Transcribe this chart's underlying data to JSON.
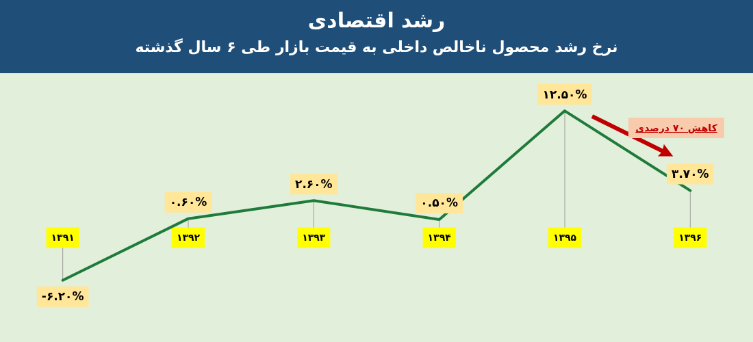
{
  "chart_data": {
    "type": "line",
    "title": "رشد اقتصادی",
    "subtitle": "نرخ رشد محصول ناخالص داخلی به قیمت بازار طی ۶ سال گذشته",
    "categories": [
      "۱۳۹۱",
      "۱۳۹۲",
      "۱۳۹۳",
      "۱۳۹۴",
      "۱۳۹۵",
      "۱۳۹۶"
    ],
    "series": [
      {
        "color": "#1e7b3a",
        "values": [
          -6.2,
          0.6,
          2.6,
          0.5,
          12.5,
          3.7
        ],
        "value_labels": [
          "-۶.۲۰%",
          "۰.۶۰%",
          "۲.۶۰%",
          "۰.۵۰%",
          "۱۲.۵۰%",
          "۳.۷۰%"
        ]
      }
    ],
    "annotations": [
      "کاهش ۷۰ درصدی"
    ],
    "grid": "x",
    "legend": false,
    "marker": "none",
    "line_style": "solid"
  }
}
